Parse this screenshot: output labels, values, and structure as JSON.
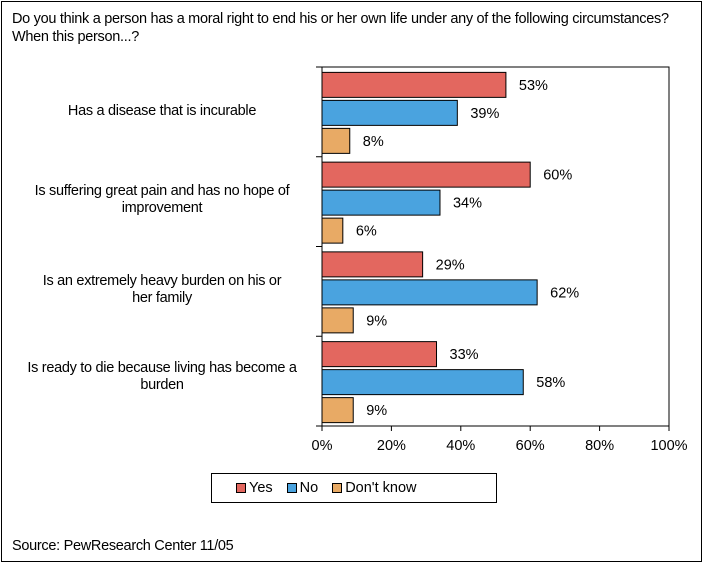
{
  "question": "Do you think a person has a moral right to end his or her own life under any of the following circumstances? When this person...?",
  "source": "Source: PewResearch Center 11/05",
  "colors": {
    "yes": "#e3675f",
    "no": "#4aa3df",
    "dont_know": "#e8aa65"
  },
  "chart_data": {
    "type": "bar",
    "orientation": "horizontal",
    "categories": [
      "Has a disease that is incurable",
      "Is suffering great pain and has no hope of improvement",
      "Is an extremely heavy burden on his or her family",
      "Is ready to die because living has become a burden"
    ],
    "series": [
      {
        "name": "Yes",
        "values": [
          53,
          60,
          29,
          33
        ]
      },
      {
        "name": "No",
        "values": [
          39,
          34,
          62,
          58
        ]
      },
      {
        "name": "Don't know",
        "values": [
          8,
          6,
          9,
          9
        ]
      }
    ],
    "value_labels": [
      [
        "53%",
        "39%",
        "8%"
      ],
      [
        "60%",
        "34%",
        "6%"
      ],
      [
        "29%",
        "62%",
        "9%"
      ],
      [
        "33%",
        "58%",
        "9%"
      ]
    ],
    "xlim": [
      0,
      100
    ],
    "x_ticks": [
      "0%",
      "20%",
      "40%",
      "60%",
      "80%",
      "100%"
    ],
    "legend": [
      "Yes",
      "No",
      "Don't know"
    ],
    "legend_position": "bottom",
    "grid": false
  }
}
